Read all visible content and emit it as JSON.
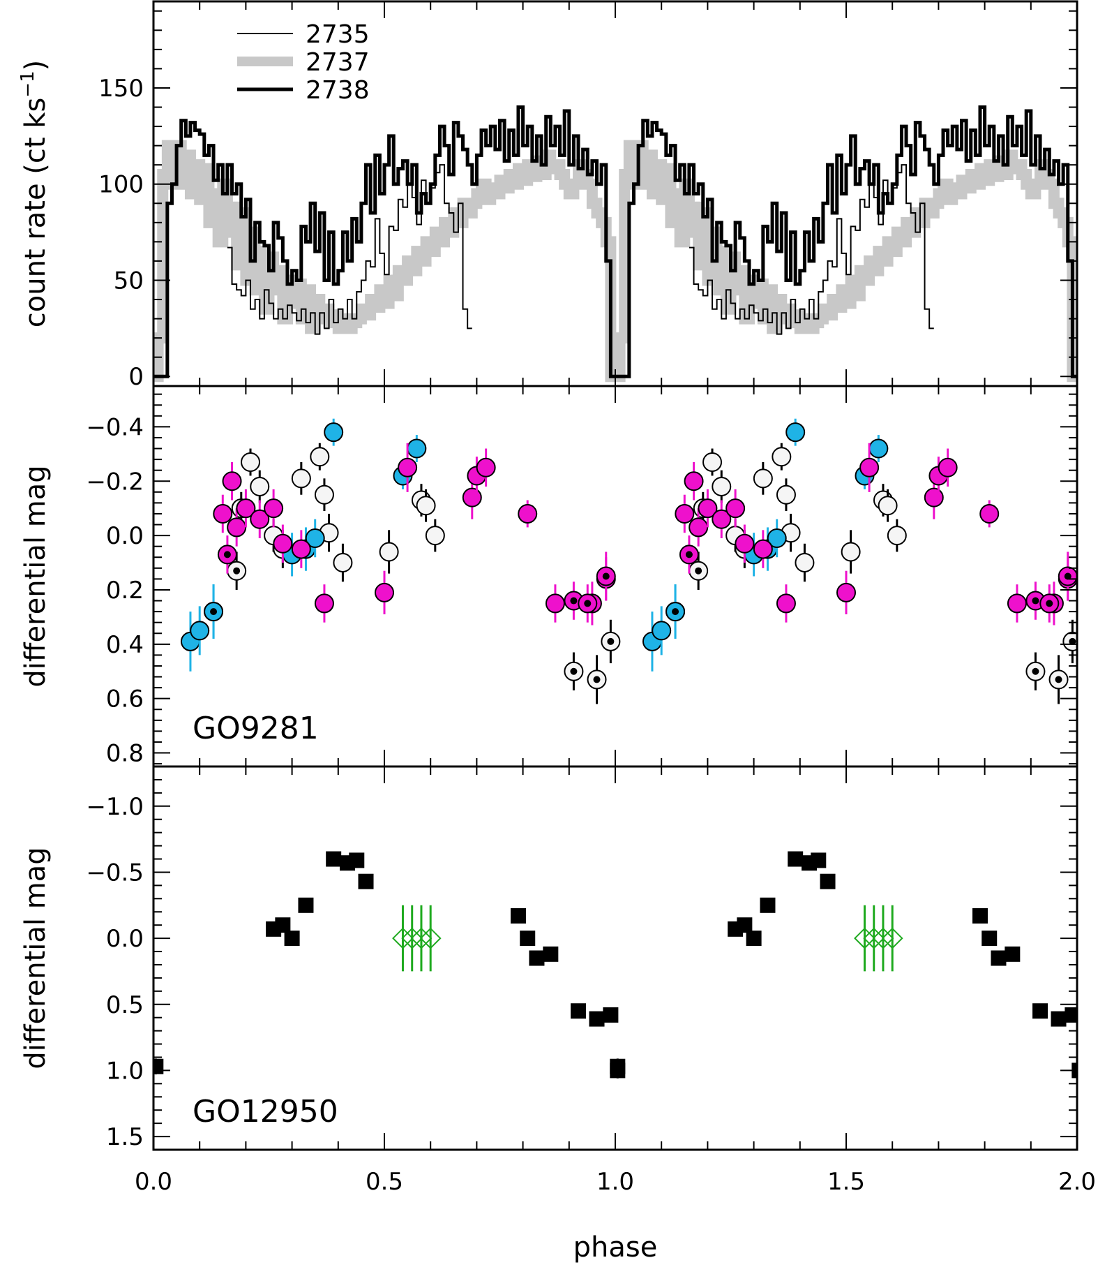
{
  "chart_data": [
    {
      "type": "line",
      "panel": "top",
      "style": "histogram",
      "ylabel": "count rate (ct ks",
      "ylabel_unit_superscript": "−1",
      "ylabel_close": ")",
      "xlim": [
        0,
        2
      ],
      "ylim": [
        -5,
        195
      ],
      "yticks": [
        0,
        50,
        100,
        150
      ],
      "ytick_labels": [
        "0",
        "50",
        "100",
        "150"
      ],
      "legend_position": "top-left",
      "series": [
        {
          "name": "2735",
          "color": "#000000",
          "style": "thin",
          "x": [
            0.16,
            0.17,
            0.18,
            0.19,
            0.2,
            0.21,
            0.22,
            0.23,
            0.24,
            0.25,
            0.26,
            0.27,
            0.28,
            0.29,
            0.3,
            0.31,
            0.32,
            0.33,
            0.34,
            0.35,
            0.36,
            0.37,
            0.38,
            0.39,
            0.4,
            0.41,
            0.42,
            0.43,
            0.44,
            0.45,
            0.46,
            0.47,
            0.48,
            0.49,
            0.5,
            0.51,
            0.52,
            0.53,
            0.54,
            0.55,
            0.56,
            0.57,
            0.58,
            0.59,
            0.6,
            0.61,
            0.62,
            0.63,
            0.64,
            0.65,
            0.66,
            0.67,
            0.68
          ],
          "values": [
            67,
            48,
            45,
            42,
            50,
            35,
            40,
            30,
            45,
            38,
            30,
            35,
            30,
            37,
            33,
            29,
            35,
            28,
            33,
            22,
            33,
            25,
            40,
            28,
            35,
            30,
            40,
            30,
            44,
            50,
            60,
            57,
            82,
            64,
            53,
            78,
            76,
            92,
            88,
            100,
            93,
            79,
            102,
            90,
            98,
            106,
            110,
            90,
            85,
            75,
            90,
            35,
            25
          ]
        },
        {
          "name": "2737",
          "color": "#c8c8c8",
          "style": "thick",
          "x": [
            0.0,
            0.01,
            0.02,
            0.03,
            0.04,
            0.05,
            0.06,
            0.07,
            0.08,
            0.09,
            0.1,
            0.11,
            0.12,
            0.13,
            0.14,
            0.15,
            0.16,
            0.17,
            0.18,
            0.19,
            0.2,
            0.21,
            0.22,
            0.23,
            0.24,
            0.25,
            0.26,
            0.27,
            0.28,
            0.29,
            0.3,
            0.31,
            0.32,
            0.33,
            0.34,
            0.35,
            0.36,
            0.37,
            0.38,
            0.39,
            0.4,
            0.41,
            0.42,
            0.43,
            0.44,
            0.45,
            0.46,
            0.47,
            0.48,
            0.49,
            0.5,
            0.51,
            0.52,
            0.53,
            0.54,
            0.55,
            0.56,
            0.57,
            0.58,
            0.59,
            0.6,
            0.61,
            0.62,
            0.63,
            0.64,
            0.65,
            0.66,
            0.67,
            0.68,
            0.69,
            0.7,
            0.71,
            0.72,
            0.73,
            0.74,
            0.75,
            0.76,
            0.77,
            0.78,
            0.79,
            0.8,
            0.81,
            0.82,
            0.83,
            0.84,
            0.85,
            0.86,
            0.87,
            0.88,
            0.89,
            0.9,
            0.91,
            0.92,
            0.93,
            0.94,
            0.95,
            0.96,
            0.97,
            0.98,
            0.99
          ],
          "values": [
            0,
            20,
            105,
            120,
            100,
            120,
            100,
            115,
            95,
            110,
            92,
            108,
            80,
            95,
            70,
            100,
            75,
            88,
            58,
            85,
            50,
            75,
            45,
            65,
            35,
            62,
            45,
            55,
            30,
            50,
            38,
            48,
            30,
            45,
            25,
            40,
            30,
            35,
            28,
            32,
            25,
            30,
            25,
            28,
            30,
            35,
            32,
            40,
            36,
            45,
            38,
            50,
            42,
            55,
            50,
            60,
            55,
            65,
            60,
            70,
            65,
            75,
            70,
            80,
            75,
            85,
            80,
            90,
            85,
            90,
            95,
            100,
            92,
            98,
            95,
            102,
            98,
            105,
            100,
            108,
            102,
            110,
            104,
            112,
            105,
            115,
            108,
            110,
            105,
            100,
            95,
            100,
            110,
            105,
            100,
            90,
            85,
            80,
            70,
            0
          ]
        },
        {
          "name": "2738",
          "color": "#000000",
          "style": "thick-dark",
          "x": [
            0.0,
            0.01,
            0.02,
            0.03,
            0.04,
            0.05,
            0.06,
            0.07,
            0.08,
            0.09,
            0.1,
            0.11,
            0.12,
            0.13,
            0.14,
            0.15,
            0.16,
            0.17,
            0.18,
            0.19,
            0.2,
            0.21,
            0.22,
            0.23,
            0.24,
            0.25,
            0.26,
            0.27,
            0.28,
            0.29,
            0.3,
            0.31,
            0.32,
            0.33,
            0.34,
            0.35,
            0.36,
            0.37,
            0.38,
            0.39,
            0.4,
            0.41,
            0.42,
            0.43,
            0.44,
            0.45,
            0.46,
            0.47,
            0.48,
            0.49,
            0.5,
            0.51,
            0.52,
            0.53,
            0.54,
            0.55,
            0.56,
            0.57,
            0.58,
            0.59,
            0.6,
            0.61,
            0.62,
            0.63,
            0.64,
            0.65,
            0.66,
            0.67,
            0.68,
            0.69,
            0.7,
            0.71,
            0.72,
            0.73,
            0.74,
            0.75,
            0.76,
            0.77,
            0.78,
            0.79,
            0.8,
            0.81,
            0.82,
            0.83,
            0.84,
            0.85,
            0.86,
            0.87,
            0.88,
            0.89,
            0.9,
            0.91,
            0.92,
            0.93,
            0.94,
            0.95,
            0.96,
            0.97,
            0.98,
            0.99
          ],
          "values": [
            0,
            0,
            0,
            90,
            100,
            120,
            133,
            125,
            132,
            128,
            126,
            115,
            120,
            102,
            110,
            95,
            110,
            95,
            100,
            83,
            92,
            60,
            80,
            70,
            68,
            55,
            80,
            72,
            60,
            48,
            55,
            50,
            78,
            70,
            90,
            65,
            85,
            50,
            75,
            48,
            55,
            75,
            60,
            82,
            70,
            90,
            110,
            85,
            115,
            95,
            110,
            125,
            100,
            108,
            112,
            100,
            110,
            85,
            95,
            90,
            100,
            115,
            130,
            120,
            105,
            132,
            125,
            118,
            110,
            100,
            115,
            128,
            120,
            130,
            118,
            133,
            112,
            128,
            115,
            140,
            120,
            130,
            112,
            125,
            110,
            135,
            120,
            130,
            115,
            138,
            110,
            125,
            108,
            118,
            105,
            112,
            100,
            110,
            60,
            0
          ]
        }
      ]
    },
    {
      "type": "scatter",
      "panel": "middle",
      "label": "GO9281",
      "ylabel": "differential mag",
      "xlim": [
        0,
        2
      ],
      "ylim": [
        0.85,
        -0.55
      ],
      "yticks": [
        -0.4,
        -0.2,
        0.0,
        0.2,
        0.4,
        0.6,
        0.8
      ],
      "ytick_labels": [
        "−0.4",
        "−0.2",
        "0.0",
        "0.2",
        "0.4",
        "0.6",
        "0.8"
      ],
      "series": [
        {
          "name": "cyan",
          "color": "#1fb3e6",
          "x": [
            0.08,
            0.1,
            0.13,
            0.3,
            0.33,
            0.35,
            0.39,
            0.54,
            0.57
          ],
          "y": [
            0.39,
            0.35,
            0.28,
            0.07,
            0.05,
            0.01,
            -0.38,
            -0.22,
            -0.32
          ],
          "err": [
            0.11,
            0.09,
            0.1,
            0.08,
            0.08,
            0.07,
            0.05,
            0.05,
            0.05
          ]
        },
        {
          "name": "cyan-dot",
          "color": "#1fb3e6",
          "x": [
            0.13
          ],
          "y": [
            0.28
          ],
          "err": [
            0.1
          ]
        },
        {
          "name": "magenta",
          "color": "#ee11cc",
          "x": [
            0.15,
            0.17,
            0.18,
            0.2,
            0.23,
            0.26,
            0.28,
            0.32,
            0.37,
            0.5,
            0.55,
            0.69,
            0.7,
            0.72,
            0.81,
            0.87,
            0.95,
            0.98
          ],
          "y": [
            -0.08,
            -0.2,
            -0.03,
            -0.1,
            -0.06,
            -0.1,
            0.03,
            0.05,
            0.25,
            0.21,
            -0.25,
            -0.14,
            -0.22,
            -0.25,
            -0.08,
            0.25,
            0.25,
            0.16
          ],
          "err": [
            0.07,
            0.07,
            0.07,
            0.07,
            0.07,
            0.07,
            0.07,
            0.07,
            0.07,
            0.08,
            0.09,
            0.08,
            0.07,
            0.07,
            0.05,
            0.07,
            0.08,
            0.08
          ]
        },
        {
          "name": "magenta-dot",
          "color": "#ee11cc",
          "x": [
            0.16,
            0.91,
            0.94,
            0.98
          ],
          "y": [
            0.07,
            0.24,
            0.25,
            0.15
          ],
          "err": [
            0.07,
            0.07,
            0.07,
            0.09
          ]
        },
        {
          "name": "white",
          "color": "#f5f5f5",
          "x": [
            0.19,
            0.21,
            0.23,
            0.26,
            0.28,
            0.32,
            0.36,
            0.37,
            0.38,
            0.41,
            0.51,
            0.58,
            0.59,
            0.61
          ],
          "y": [
            -0.1,
            -0.27,
            -0.18,
            0.0,
            0.05,
            -0.21,
            -0.29,
            -0.15,
            -0.01,
            0.1,
            0.06,
            -0.13,
            -0.11,
            0.0
          ],
          "err": [
            0.06,
            0.05,
            0.06,
            0.06,
            0.07,
            0.06,
            0.05,
            0.06,
            0.07,
            0.07,
            0.08,
            0.06,
            0.06,
            0.06
          ]
        },
        {
          "name": "white-dot",
          "color": "#f5f5f5",
          "x": [
            0.18,
            0.91,
            0.96,
            0.99
          ],
          "y": [
            0.13,
            0.5,
            0.53,
            0.39
          ],
          "err": [
            0.07,
            0.07,
            0.09,
            0.08
          ]
        }
      ]
    },
    {
      "type": "scatter",
      "panel": "bottom",
      "label": "GO12950",
      "xlabel": "phase",
      "ylabel": "differential mag",
      "xlim": [
        0,
        2
      ],
      "ylim": [
        1.6,
        -1.3
      ],
      "xticks": [
        0,
        0.5,
        1,
        1.5,
        2
      ],
      "xtick_labels": [
        "0.0",
        "0.5",
        "1.0",
        "1.5",
        "2.0"
      ],
      "yticks": [
        -1.0,
        -0.5,
        0.0,
        0.5,
        1.0,
        1.5
      ],
      "ytick_labels": [
        "−1.0",
        "−0.5",
        "0.0",
        "0.5",
        "1.0",
        "1.5"
      ],
      "series": [
        {
          "name": "squares",
          "color": "#000000",
          "x": [
            0.005,
            0.26,
            0.28,
            0.3,
            0.33,
            0.39,
            0.42,
            0.44,
            0.46,
            0.79,
            0.81,
            0.83,
            0.86,
            0.92,
            0.96,
            0.99,
            1.005
          ],
          "y": [
            0.97,
            -0.07,
            -0.1,
            0.0,
            -0.25,
            -0.6,
            -0.57,
            -0.59,
            -0.43,
            -0.17,
            0.0,
            0.15,
            0.12,
            0.55,
            0.61,
            0.58,
            1.0
          ],
          "err": [
            0.06,
            0.04,
            0.04,
            0.04,
            0.04,
            0.04,
            0.04,
            0.04,
            0.04,
            0.04,
            0.04,
            0.04,
            0.04,
            0.05,
            0.05,
            0.05,
            0.06
          ]
        },
        {
          "name": "diamonds",
          "color": "#1faa1f",
          "x": [
            0.54,
            0.56,
            0.58,
            0.6
          ],
          "y": [
            0.0,
            0.0,
            0.0,
            0.0
          ],
          "err": [
            0.1,
            0.1,
            0.1,
            0.1
          ]
        }
      ]
    }
  ]
}
